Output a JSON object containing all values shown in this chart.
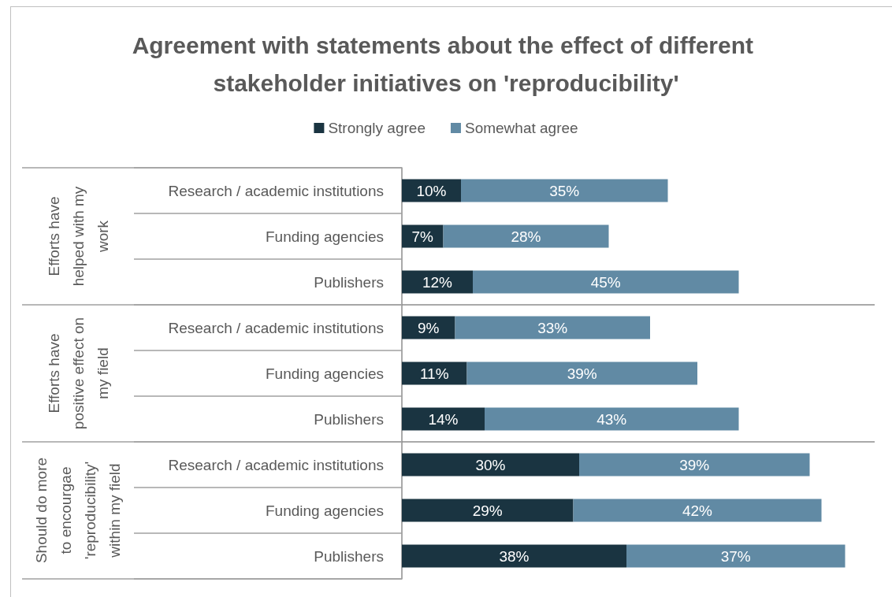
{
  "chart_data": {
    "type": "bar",
    "orientation": "horizontal",
    "stacked": true,
    "title": "Agreement with statements about the effect of different stakeholder initiatives on 'reproducibility'",
    "categories": [
      "Research / academic institutions",
      "Funding agencies",
      "Publishers",
      "Research / academic institutions",
      "Funding agencies",
      "Publishers",
      "Research / academic institutions",
      "Funding agencies",
      "Publishers"
    ],
    "annotations": [
      "Efforts have helped with my work",
      "Efforts have positive effect on my field",
      "Should do more to encourgae 'reproducibility' within my field"
    ],
    "series": [
      {
        "name": "Strongly agree",
        "color": "#1a3441",
        "values": [
          10,
          7,
          12,
          9,
          11,
          14,
          30,
          29,
          38
        ],
        "value_labels": [
          "10%",
          "7%",
          "12%",
          "9%",
          "11%",
          "14%",
          "30%",
          "29%",
          "38%"
        ]
      },
      {
        "name": "Somewhat agree",
        "color": "#618aa4",
        "values": [
          35,
          28,
          45,
          33,
          39,
          43,
          39,
          42,
          37
        ],
        "value_labels": [
          "35%",
          "28%",
          "45%",
          "33%",
          "39%",
          "43%",
          "39%",
          "42%",
          "37%"
        ]
      }
    ],
    "legend": "top",
    "tick_labels": "y"
  }
}
